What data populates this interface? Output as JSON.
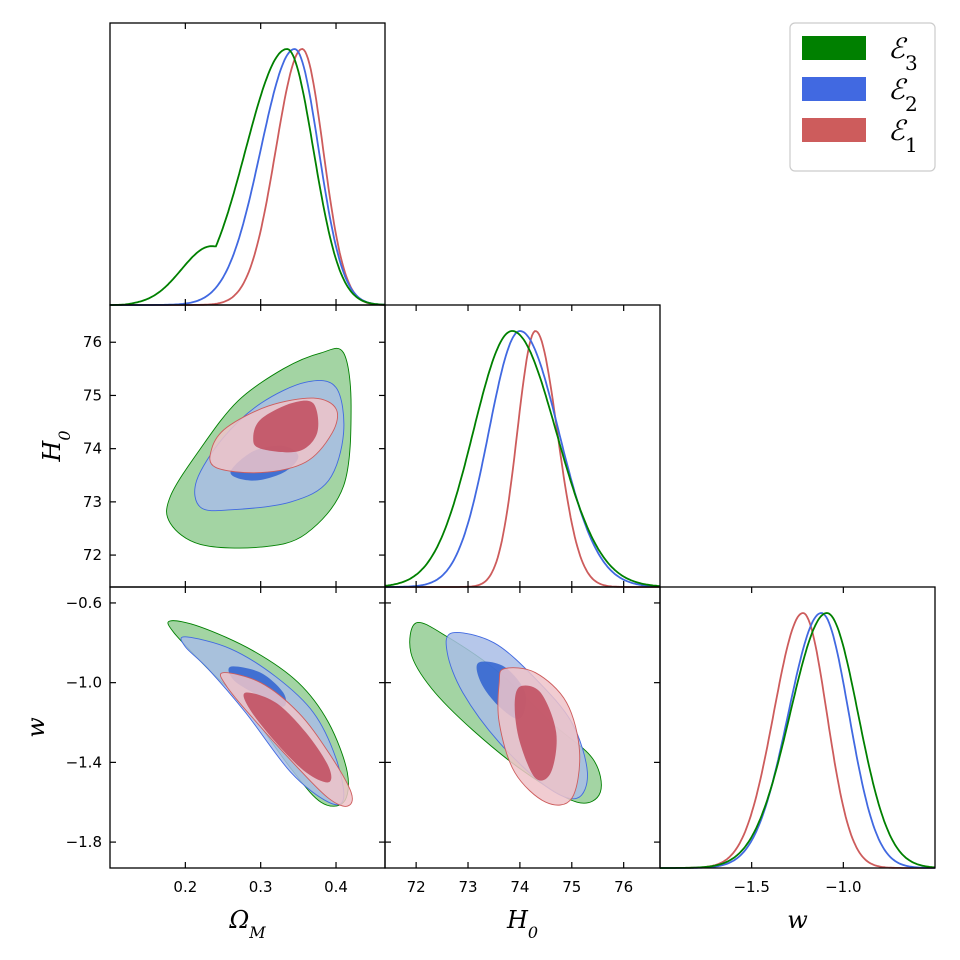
{
  "chart_data": {
    "type": "corner",
    "parameters": [
      {
        "name": "omega_m",
        "label": "Ω",
        "sub": "M",
        "range": [
          0.1,
          0.465
        ],
        "ticks": [
          0.2,
          0.3,
          0.4
        ],
        "tick_labels": [
          "0.2",
          "0.3",
          "0.4"
        ]
      },
      {
        "name": "H0",
        "label": "H",
        "sub": "0",
        "range": [
          71.4,
          76.7
        ],
        "ticks": [
          72,
          73,
          74,
          75,
          76
        ],
        "tick_labels": [
          "72",
          "73",
          "74",
          "75",
          "76"
        ]
      },
      {
        "name": "w",
        "label": "w",
        "sub": "",
        "range": [
          -1.93,
          -0.52
        ],
        "ticks": [
          -1.8,
          -1.4,
          -1.0,
          -0.6
        ],
        "tick_labels": [
          "−1.8",
          "−1.4",
          "−1.0",
          "−0.6"
        ]
      }
    ],
    "diag_tick_labels_w": {
      "ticks": [
        -1.5,
        -1.0
      ],
      "labels": [
        "−1.5",
        "−1.0"
      ],
      "range": [
        -2.0,
        -0.5
      ]
    },
    "series": [
      {
        "name": "E3",
        "legend_base": "ℰ",
        "legend_sub": "3",
        "color": "#008000",
        "fill_outer": "#93cc93",
        "fill_inner": "#2a8f2a",
        "marginals": {
          "omega_m": {
            "mode": 0.335,
            "sigma_left": 0.055,
            "sigma_right": 0.035,
            "skew_tail": 0.12
          },
          "H0": {
            "mean": 73.85,
            "sigma_left": 0.75,
            "sigma_right": 0.85
          },
          "w": {
            "mean": -1.09,
            "sigma_left": 0.2,
            "sigma_right": 0.17
          }
        },
        "contours": {
          "om_h0": {
            "center": [
              0.3,
              74.0
            ],
            "outer": [
              [
                0.18,
                72.6
              ],
              [
                0.22,
                72.2
              ],
              [
                0.3,
                72.15
              ],
              [
                0.36,
                72.4
              ],
              [
                0.41,
                73.3
              ],
              [
                0.42,
                74.8
              ],
              [
                0.41,
                75.8
              ],
              [
                0.38,
                75.8
              ],
              [
                0.33,
                75.5
              ],
              [
                0.27,
                74.9
              ],
              [
                0.22,
                74.0
              ],
              [
                0.18,
                73.1
              ]
            ],
            "inner": null
          },
          "om_w": {
            "outer": [
              [
                0.18,
                -0.69
              ],
              [
                0.22,
                -0.72
              ],
              [
                0.29,
                -0.84
              ],
              [
                0.35,
                -1.0
              ],
              [
                0.39,
                -1.2
              ],
              [
                0.415,
                -1.45
              ],
              [
                0.41,
                -1.6
              ],
              [
                0.38,
                -1.6
              ],
              [
                0.34,
                -1.43
              ],
              [
                0.28,
                -1.12
              ],
              [
                0.23,
                -0.93
              ],
              [
                0.185,
                -0.75
              ]
            ],
            "inner": null
          },
          "h0_w": {
            "outer": [
              [
                72.0,
                -0.7
              ],
              [
                72.6,
                -0.77
              ],
              [
                73.6,
                -0.95
              ],
              [
                74.6,
                -1.2
              ],
              [
                75.4,
                -1.38
              ],
              [
                75.55,
                -1.55
              ],
              [
                75.1,
                -1.6
              ],
              [
                74.1,
                -1.45
              ],
              [
                73.1,
                -1.24
              ],
              [
                72.3,
                -1.03
              ],
              [
                71.9,
                -0.85
              ]
            ],
            "inner": null
          }
        }
      },
      {
        "name": "E2",
        "legend_base": "ℰ",
        "legend_sub": "2",
        "color": "#4169e1",
        "fill_outer": "#a9bde6",
        "fill_inner": "#2f62d0",
        "marginals": {
          "omega_m": {
            "mode": 0.345,
            "sigma_left": 0.045,
            "sigma_right": 0.032
          },
          "H0": {
            "mean": 74.0,
            "sigma_left": 0.6,
            "sigma_right": 0.75
          },
          "w": {
            "mean": -1.12,
            "sigma_left": 0.18,
            "sigma_right": 0.15
          }
        },
        "contours": {
          "om_h0": {
            "outer": [
              [
                0.22,
                72.9
              ],
              [
                0.26,
                72.85
              ],
              [
                0.34,
                73.0
              ],
              [
                0.39,
                73.4
              ],
              [
                0.41,
                74.3
              ],
              [
                0.4,
                75.15
              ],
              [
                0.36,
                75.25
              ],
              [
                0.3,
                74.85
              ],
              [
                0.25,
                74.2
              ],
              [
                0.215,
                73.4
              ]
            ],
            "inner": [
              [
                0.26,
                73.55
              ],
              [
                0.29,
                73.4
              ],
              [
                0.33,
                73.55
              ],
              [
                0.35,
                73.85
              ],
              [
                0.33,
                74.05
              ],
              [
                0.29,
                73.95
              ]
            ]
          },
          "om_w": {
            "outer": [
              [
                0.2,
                -0.77
              ],
              [
                0.26,
                -0.83
              ],
              [
                0.32,
                -0.97
              ],
              [
                0.37,
                -1.15
              ],
              [
                0.4,
                -1.38
              ],
              [
                0.41,
                -1.58
              ],
              [
                0.39,
                -1.6
              ],
              [
                0.34,
                -1.45
              ],
              [
                0.28,
                -1.15
              ],
              [
                0.23,
                -0.93
              ],
              [
                0.2,
                -0.82
              ]
            ],
            "inner": [
              [
                0.26,
                -0.92
              ],
              [
                0.3,
                -0.95
              ],
              [
                0.33,
                -1.05
              ],
              [
                0.33,
                -1.12
              ],
              [
                0.3,
                -1.07
              ],
              [
                0.265,
                -0.99
              ]
            ]
          },
          "h0_w": {
            "outer": [
              [
                72.7,
                -0.75
              ],
              [
                73.5,
                -0.8
              ],
              [
                74.3,
                -0.98
              ],
              [
                75.0,
                -1.2
              ],
              [
                75.3,
                -1.45
              ],
              [
                75.1,
                -1.58
              ],
              [
                74.5,
                -1.52
              ],
              [
                73.6,
                -1.3
              ],
              [
                72.9,
                -1.05
              ],
              [
                72.6,
                -0.85
              ]
            ],
            "inner": [
              [
                73.2,
                -0.9
              ],
              [
                73.7,
                -0.92
              ],
              [
                74.1,
                -1.05
              ],
              [
                74.0,
                -1.18
              ],
              [
                73.6,
                -1.12
              ],
              [
                73.25,
                -1.0
              ]
            ]
          }
        }
      },
      {
        "name": "E1",
        "legend_base": "ℰ",
        "legend_sub": "1",
        "color": "#cd5c5c",
        "fill_outer": "#efc3c9",
        "fill_inner": "#c04a5c",
        "marginals": {
          "omega_m": {
            "mode": 0.355,
            "sigma_left": 0.035,
            "sigma_right": 0.028
          },
          "H0": {
            "mean": 74.3,
            "sigma_left": 0.35,
            "sigma_right": 0.42
          },
          "w": {
            "mean": -1.22,
            "sigma_left": 0.16,
            "sigma_right": 0.13
          }
        },
        "contours": {
          "om_h0": {
            "outer": [
              [
                0.24,
                73.65
              ],
              [
                0.3,
                73.55
              ],
              [
                0.36,
                73.75
              ],
              [
                0.395,
                74.3
              ],
              [
                0.4,
                74.75
              ],
              [
                0.37,
                74.95
              ],
              [
                0.31,
                74.8
              ],
              [
                0.255,
                74.4
              ],
              [
                0.235,
                74.0
              ]
            ],
            "inner": [
              [
                0.3,
                74.0
              ],
              [
                0.35,
                73.95
              ],
              [
                0.375,
                74.3
              ],
              [
                0.37,
                74.85
              ],
              [
                0.34,
                74.85
              ],
              [
                0.3,
                74.55
              ],
              [
                0.29,
                74.2
              ]
            ]
          },
          "om_w": {
            "outer": [
              [
                0.25,
                -0.95
              ],
              [
                0.3,
                -1.0
              ],
              [
                0.35,
                -1.15
              ],
              [
                0.39,
                -1.35
              ],
              [
                0.42,
                -1.55
              ],
              [
                0.415,
                -1.62
              ],
              [
                0.39,
                -1.58
              ],
              [
                0.35,
                -1.43
              ],
              [
                0.29,
                -1.18
              ],
              [
                0.255,
                -1.02
              ]
            ],
            "inner": [
              [
                0.28,
                -1.05
              ],
              [
                0.32,
                -1.1
              ],
              [
                0.36,
                -1.25
              ],
              [
                0.39,
                -1.42
              ],
              [
                0.39,
                -1.5
              ],
              [
                0.36,
                -1.45
              ],
              [
                0.32,
                -1.3
              ],
              [
                0.285,
                -1.13
              ]
            ]
          },
          "h0_w": {
            "outer": [
              [
                73.7,
                -0.93
              ],
              [
                74.3,
                -0.95
              ],
              [
                74.9,
                -1.1
              ],
              [
                75.15,
                -1.35
              ],
              [
                75.0,
                -1.58
              ],
              [
                74.5,
                -1.6
              ],
              [
                73.9,
                -1.45
              ],
              [
                73.6,
                -1.2
              ],
              [
                73.6,
                -1.0
              ]
            ],
            "inner": [
              [
                74.0,
                -1.02
              ],
              [
                74.4,
                -1.05
              ],
              [
                74.7,
                -1.25
              ],
              [
                74.6,
                -1.45
              ],
              [
                74.3,
                -1.48
              ],
              [
                74.0,
                -1.3
              ],
              [
                73.9,
                -1.12
              ]
            ]
          }
        }
      }
    ],
    "legend": {
      "placement": "top-right"
    }
  }
}
